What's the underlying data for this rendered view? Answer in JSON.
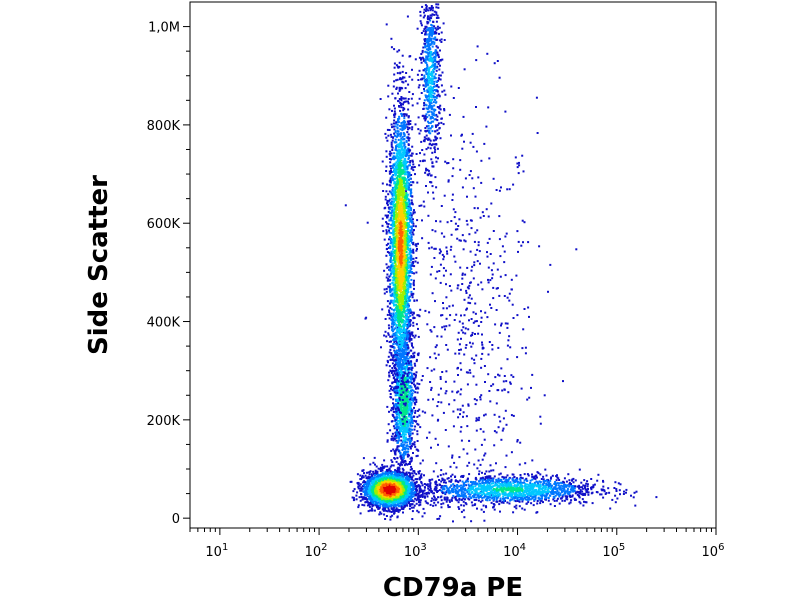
{
  "chart_data": {
    "type": "scatter",
    "subtype": "flow-cytometry-density-dot-plot",
    "xlabel": "CD79a PE",
    "ylabel": "Side Scatter",
    "x_scale": "log",
    "xlim": [
      5,
      1000000
    ],
    "ylim": [
      -20000,
      1050000
    ],
    "x_ticks": [
      {
        "value": 10,
        "base": "10",
        "exp": "1"
      },
      {
        "value": 100,
        "base": "10",
        "exp": "2"
      },
      {
        "value": 1000,
        "base": "10",
        "exp": "3"
      },
      {
        "value": 10000,
        "base": "10",
        "exp": "4"
      },
      {
        "value": 100000,
        "base": "10",
        "exp": "5"
      },
      {
        "value": 1000000,
        "base": "10",
        "exp": "6"
      }
    ],
    "y_ticks": [
      {
        "value": 0,
        "label": "0"
      },
      {
        "value": 200000,
        "label": "200K"
      },
      {
        "value": 400000,
        "label": "400K"
      },
      {
        "value": 600000,
        "label": "600K"
      },
      {
        "value": 800000,
        "label": "800K"
      },
      {
        "value": 1000000,
        "label": "1,0M"
      }
    ],
    "grid": false,
    "legend": "none",
    "color_scale": [
      "#1010c8",
      "#0077ff",
      "#00c8ff",
      "#00e68c",
      "#a0f000",
      "#ffd000",
      "#ff6000",
      "#e00000"
    ],
    "populations": [
      {
        "x_center": 500,
        "y_center": 60000,
        "x_spread_decades": 0.13,
        "y_spread": 18000,
        "count": 2600,
        "peak_density": 1.0
      },
      {
        "x_center": 650,
        "y_center": 560000,
        "x_spread_decades": 0.06,
        "y_spread": 140000,
        "count": 3200,
        "peak_density": 0.8
      },
      {
        "x_center": 700,
        "y_center": 240000,
        "x_spread_decades": 0.06,
        "y_spread": 70000,
        "count": 1200,
        "peak_density": 0.5
      },
      {
        "x_center": 1300,
        "y_center": 900000,
        "x_spread_decades": 0.05,
        "y_spread": 90000,
        "count": 700,
        "peak_density": 0.3
      },
      {
        "x_center": 8000,
        "y_center": 60000,
        "x_spread_decades": 0.45,
        "y_spread": 15000,
        "count": 1500,
        "peak_density": 0.4
      },
      {
        "x_center": 3000,
        "y_center": 350000,
        "x_spread_decades": 0.35,
        "y_spread": 250000,
        "count": 700,
        "peak_density": 0.05
      }
    ]
  }
}
